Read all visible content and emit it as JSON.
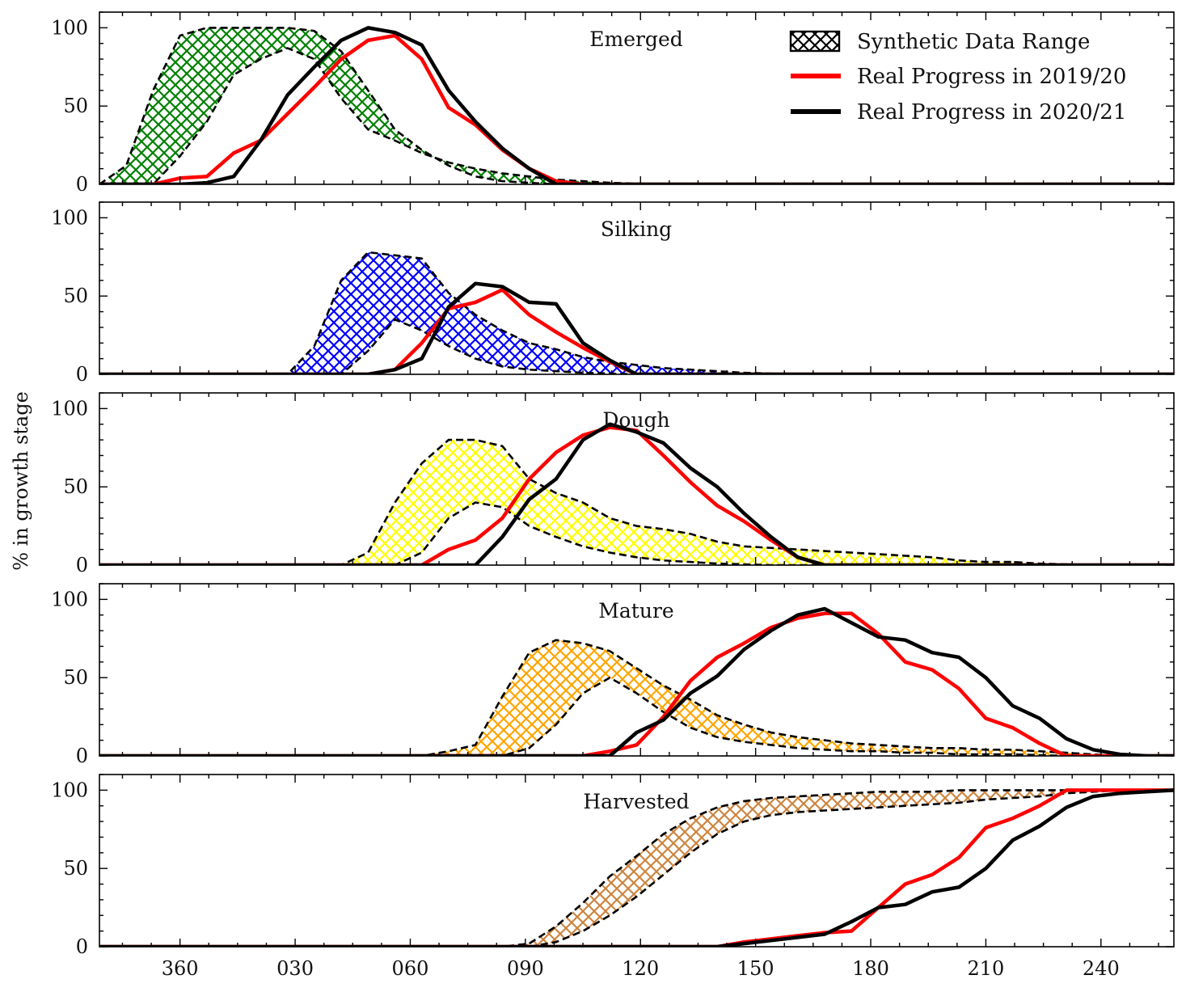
{
  "chart_data": {
    "type": "area",
    "ylabel": "% in growth stage",
    "ylim": [
      0,
      110
    ],
    "yticks": [
      0,
      50,
      100
    ],
    "xticks": [
      {
        "value": 0,
        "label": "360"
      },
      {
        "value": 30,
        "label": "030"
      },
      {
        "value": 60,
        "label": "060"
      },
      {
        "value": 90,
        "label": "090"
      },
      {
        "value": 120,
        "label": "120"
      },
      {
        "value": 150,
        "label": "150"
      },
      {
        "value": 180,
        "label": "180"
      },
      {
        "value": 210,
        "label": "210"
      },
      {
        "value": 240,
        "label": "240"
      }
    ],
    "xlim": [
      -21,
      259
    ],
    "legend": {
      "position": "top-right",
      "entries": [
        {
          "label": "Synthetic Data Range",
          "kind": "hatch"
        },
        {
          "label": "Real Progress in 2019/20",
          "kind": "line",
          "color": "#ff0000"
        },
        {
          "label": "Real Progress in 2020/21",
          "kind": "line",
          "color": "#000000"
        }
      ]
    },
    "panels": [
      {
        "title": "Emerged",
        "fill_color": "#008000",
        "range_upper": {
          "x": [
            -21,
            -14,
            -7,
            0,
            7,
            14,
            21,
            28,
            35,
            42,
            49,
            56,
            63,
            70,
            77,
            84,
            91,
            98,
            105,
            112,
            119,
            126,
            259
          ],
          "y": [
            0,
            12,
            60,
            95,
            100,
            100,
            100,
            100,
            98,
            85,
            60,
            35,
            22,
            12,
            5,
            2,
            1,
            0,
            0,
            0,
            0,
            0,
            0
          ]
        },
        "range_lower": {
          "x": [
            -21,
            -14,
            -7,
            0,
            7,
            14,
            21,
            28,
            35,
            42,
            49,
            56,
            63,
            70,
            77,
            84,
            91,
            98,
            105,
            112,
            119,
            126,
            259
          ],
          "y": [
            0,
            0,
            0,
            18,
            40,
            70,
            80,
            87,
            80,
            55,
            35,
            28,
            20,
            14,
            10,
            7,
            5,
            3,
            2,
            1,
            0.5,
            0,
            0
          ]
        },
        "series": [
          {
            "name": "Real Progress in 2019/20",
            "color": "#ff0000",
            "x": [
              -21,
              -7,
              0,
              7,
              14,
              21,
              28,
              35,
              42,
              49,
              56,
              63,
              70,
              77,
              84,
              91,
              98,
              105,
              112,
              119,
              259
            ],
            "y": [
              0,
              0,
              4,
              5,
              20,
              28,
              45,
              62,
              80,
              92,
              95,
              80,
              49,
              38,
              22,
              10,
              2,
              0,
              0,
              0,
              0
            ]
          },
          {
            "name": "Real Progress in 2020/21",
            "color": "#000000",
            "x": [
              -21,
              -7,
              0,
              7,
              14,
              21,
              28,
              35,
              42,
              49,
              56,
              63,
              70,
              77,
              84,
              91,
              98,
              105,
              259
            ],
            "y": [
              0,
              0,
              0,
              1,
              5,
              28,
              57,
              75,
              92,
              100,
              97,
              89,
              60,
              40,
              23,
              10,
              0,
              0,
              0
            ]
          }
        ]
      },
      {
        "title": "Silking",
        "fill_color": "#0000ff",
        "range_upper": {
          "x": [
            -21,
            21,
            28,
            35,
            42,
            49,
            56,
            63,
            70,
            77,
            84,
            91,
            98,
            105,
            112,
            119,
            126,
            133,
            140,
            147,
            154,
            161,
            168,
            259
          ],
          "y": [
            0,
            0,
            0,
            18,
            60,
            78,
            76,
            74,
            52,
            38,
            28,
            20,
            16,
            11,
            8,
            6,
            4,
            3,
            2,
            1,
            0.5,
            0,
            0,
            0
          ]
        },
        "range_lower": {
          "x": [
            -21,
            21,
            28,
            35,
            42,
            49,
            56,
            63,
            70,
            77,
            84,
            91,
            98,
            105,
            112,
            119,
            126,
            133,
            259
          ],
          "y": [
            0,
            0,
            0,
            0,
            0,
            15,
            35,
            28,
            18,
            10,
            5,
            3,
            2,
            1,
            0.5,
            0,
            0,
            0,
            0
          ]
        },
        "series": [
          {
            "name": "Real Progress in 2019/20",
            "color": "#ff0000",
            "x": [
              -21,
              42,
              49,
              56,
              63,
              70,
              77,
              84,
              91,
              98,
              105,
              112,
              119,
              259
            ],
            "y": [
              0,
              0,
              0,
              3,
              20,
              42,
              46,
              54,
              38,
              27,
              17,
              8,
              0,
              0
            ]
          },
          {
            "name": "Real Progress in 2020/21",
            "color": "#000000",
            "x": [
              -21,
              49,
              56,
              63,
              70,
              77,
              84,
              91,
              98,
              105,
              112,
              119,
              259
            ],
            "y": [
              0,
              0,
              3,
              10,
              43,
              58,
              56,
              46,
              45,
              20,
              9,
              0,
              0
            ]
          }
        ]
      },
      {
        "title": "Dough",
        "fill_color": "#ffff00",
        "range_upper": {
          "x": [
            -21,
            42,
            49,
            56,
            63,
            70,
            77,
            84,
            91,
            98,
            105,
            112,
            119,
            126,
            133,
            140,
            147,
            154,
            161,
            168,
            175,
            182,
            189,
            196,
            203,
            210,
            217,
            224,
            231,
            238,
            245,
            259
          ],
          "y": [
            0,
            0,
            8,
            40,
            65,
            80,
            80,
            76,
            55,
            46,
            40,
            30,
            25,
            23,
            20,
            15,
            12,
            11,
            10,
            9,
            8,
            7,
            6,
            5,
            3,
            2,
            2,
            1,
            0.5,
            0,
            0,
            0
          ]
        },
        "range_lower": {
          "x": [
            -21,
            56,
            63,
            70,
            77,
            84,
            91,
            98,
            105,
            112,
            119,
            126,
            133,
            140,
            147,
            154,
            161,
            168,
            259
          ],
          "y": [
            0,
            0,
            8,
            30,
            40,
            37,
            25,
            18,
            12,
            8,
            5,
            3,
            2,
            1,
            0.5,
            0,
            0,
            0,
            0
          ]
        },
        "series": [
          {
            "name": "Real Progress in 2019/20",
            "color": "#ff0000",
            "x": [
              -21,
              63,
              70,
              77,
              84,
              91,
              98,
              105,
              112,
              119,
              126,
              133,
              140,
              147,
              154,
              161,
              168,
              259
            ],
            "y": [
              0,
              0,
              10,
              16,
              30,
              55,
              72,
              83,
              88,
              86,
              70,
              53,
              38,
              28,
              16,
              5,
              0,
              0
            ]
          },
          {
            "name": "Real Progress in 2020/21",
            "color": "#000000",
            "x": [
              -21,
              77,
              84,
              91,
              98,
              105,
              112,
              119,
              126,
              133,
              140,
              147,
              154,
              161,
              168,
              259
            ],
            "y": [
              0,
              0,
              18,
              42,
              55,
              80,
              90,
              85,
              78,
              62,
              50,
              33,
              18,
              5,
              0,
              0
            ]
          }
        ]
      },
      {
        "title": "Mature",
        "fill_color": "#ffa500",
        "range_upper": {
          "x": [
            -21,
            63,
            70,
            77,
            84,
            91,
            98,
            105,
            112,
            119,
            126,
            133,
            140,
            147,
            154,
            161,
            168,
            175,
            182,
            189,
            196,
            203,
            210,
            217,
            224,
            231,
            238,
            245,
            252,
            259
          ],
          "y": [
            0,
            0,
            3,
            7,
            38,
            66,
            74,
            72,
            67,
            56,
            45,
            36,
            26,
            20,
            15,
            12,
            10,
            8,
            7,
            6,
            5,
            5,
            4,
            4,
            3,
            2,
            1,
            0,
            0,
            0
          ]
        },
        "range_lower": {
          "x": [
            -21,
            77,
            84,
            91,
            98,
            105,
            112,
            119,
            126,
            133,
            140,
            147,
            154,
            161,
            168,
            175,
            182,
            189,
            196,
            203,
            210,
            217,
            224,
            231,
            238,
            245,
            252,
            259
          ],
          "y": [
            0,
            0,
            0,
            5,
            20,
            40,
            50,
            40,
            28,
            18,
            12,
            9,
            7,
            5,
            4,
            3,
            3,
            2,
            2,
            1,
            1,
            1,
            0.5,
            0,
            0,
            0,
            0,
            0
          ]
        },
        "series": [
          {
            "name": "Real Progress in 2019/20",
            "color": "#ff0000",
            "x": [
              -21,
              105,
              112,
              119,
              126,
              133,
              140,
              147,
              154,
              161,
              168,
              175,
              182,
              189,
              196,
              203,
              210,
              217,
              224,
              231,
              259
            ],
            "y": [
              0,
              0,
              3,
              7,
              25,
              48,
              63,
              72,
              82,
              88,
              91,
              91,
              78,
              60,
              55,
              43,
              24,
              18,
              8,
              0,
              0
            ]
          },
          {
            "name": "Real Progress in 2020/21",
            "color": "#000000",
            "x": [
              -21,
              112,
              119,
              126,
              133,
              140,
              147,
              154,
              161,
              168,
              175,
              182,
              189,
              196,
              203,
              210,
              217,
              224,
              231,
              238,
              245,
              252,
              259
            ],
            "y": [
              0,
              0,
              15,
              23,
              40,
              51,
              68,
              80,
              90,
              94,
              85,
              76,
              74,
              66,
              63,
              50,
              32,
              24,
              11,
              4,
              1,
              0,
              0
            ]
          }
        ]
      },
      {
        "title": "Harvested",
        "fill_color": "#cd853f",
        "range_upper": {
          "x": [
            -21,
            84,
            91,
            98,
            105,
            112,
            119,
            126,
            133,
            140,
            147,
            154,
            161,
            168,
            175,
            182,
            189,
            196,
            203,
            210,
            217,
            224,
            231,
            238,
            245,
            252,
            259
          ],
          "y": [
            0,
            0,
            2,
            13,
            28,
            45,
            58,
            72,
            82,
            89,
            93,
            95,
            96,
            97,
            98,
            99,
            99,
            99,
            100,
            100,
            100,
            100,
            100,
            100,
            100,
            100,
            100
          ]
        },
        "range_lower": {
          "x": [
            -21,
            91,
            98,
            105,
            112,
            119,
            126,
            133,
            140,
            147,
            154,
            161,
            168,
            175,
            182,
            189,
            196,
            203,
            210,
            217,
            224,
            231,
            238,
            245,
            252,
            259
          ],
          "y": [
            0,
            0,
            3,
            10,
            20,
            32,
            46,
            60,
            72,
            80,
            84,
            86,
            87,
            88,
            89,
            90,
            91,
            92,
            94,
            95,
            96,
            98,
            99,
            100,
            100,
            100
          ]
        },
        "series": [
          {
            "name": "Real Progress in 2019/20",
            "color": "#ff0000",
            "x": [
              -21,
              140,
              147,
              154,
              161,
              168,
              175,
              182,
              189,
              196,
              203,
              210,
              217,
              224,
              231,
              238,
              245,
              252,
              259
            ],
            "y": [
              0,
              0,
              3,
              5,
              7,
              9,
              10,
              25,
              40,
              46,
              57,
              76,
              82,
              90,
              100,
              100,
              100,
              100,
              100
            ]
          },
          {
            "name": "Real Progress in 2020/21",
            "color": "#000000",
            "x": [
              -21,
              140,
              147,
              154,
              161,
              168,
              175,
              182,
              189,
              196,
              203,
              210,
              217,
              224,
              231,
              238,
              245,
              252,
              259
            ],
            "y": [
              0,
              0,
              2,
              4,
              6,
              8,
              16,
              25,
              27,
              35,
              38,
              50,
              68,
              77,
              89,
              96,
              98,
              99,
              100
            ]
          }
        ]
      }
    ]
  }
}
